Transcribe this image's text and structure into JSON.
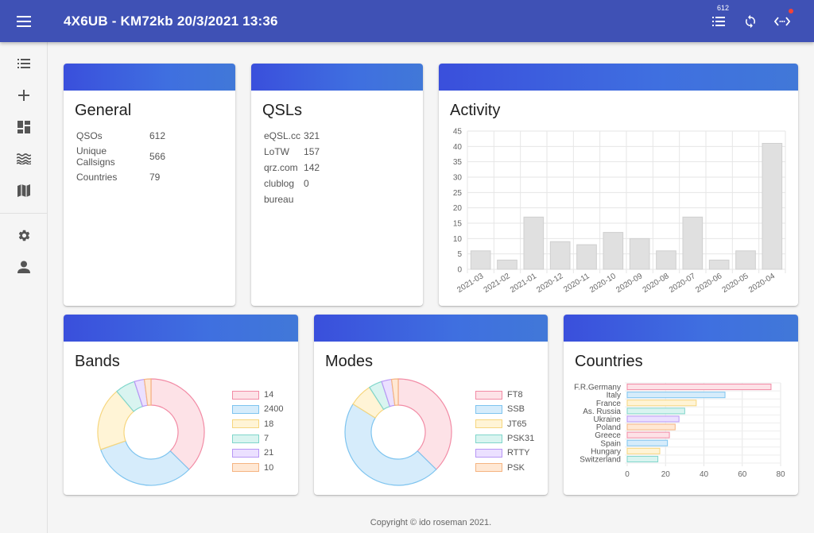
{
  "appbar": {
    "title": "4X6UB - KM72kb 20/3/2021 13:36",
    "qso_count_badge": "612",
    "color": "#3f51b5"
  },
  "sidebar": {
    "items": [
      {
        "icon": "list-icon"
      },
      {
        "icon": "plus-icon"
      },
      {
        "icon": "dashboard-icon"
      },
      {
        "icon": "waves-icon"
      },
      {
        "icon": "map-icon"
      },
      {
        "icon": "gear-icon"
      },
      {
        "icon": "person-icon"
      }
    ]
  },
  "general": {
    "title": "General",
    "rows": [
      {
        "label": "QSOs",
        "value": "612"
      },
      {
        "label": "Unique Callsigns",
        "value": "566"
      },
      {
        "label": "Countries",
        "value": "79"
      }
    ]
  },
  "qsls": {
    "title": "QSLs",
    "rows": [
      {
        "label": "eQSL.cc",
        "value": "321"
      },
      {
        "label": "LoTW",
        "value": "157"
      },
      {
        "label": "qrz.com",
        "value": "142"
      },
      {
        "label": "clublog",
        "value": "0"
      },
      {
        "label": "bureau",
        "value": ""
      }
    ]
  },
  "activity": {
    "title": "Activity",
    "chart_data": {
      "type": "bar",
      "categories": [
        "2021-03",
        "2021-02",
        "2021-01",
        "2020-12",
        "2020-11",
        "2020-10",
        "2020-09",
        "2020-08",
        "2020-07",
        "2020-06",
        "2020-05",
        "2020-04"
      ],
      "values": [
        6,
        3,
        17,
        9,
        8,
        12,
        10,
        6,
        17,
        3,
        6,
        41
      ],
      "ylim": [
        0,
        45
      ],
      "yticks": [
        "0",
        "5",
        "10",
        "15",
        "20",
        "25",
        "30",
        "35",
        "40",
        "45"
      ],
      "grid": true,
      "bar_color": "#e0e0e0"
    }
  },
  "bands": {
    "title": "Bands",
    "chart_data": {
      "type": "pie",
      "labels": [
        "14",
        "2400",
        "18",
        "7",
        "21",
        "10"
      ],
      "values": [
        37,
        32,
        19,
        6,
        3,
        2
      ],
      "fills": [
        "#fde2e7",
        "#d6ecfb",
        "#fff4d6",
        "#d9f4f0",
        "#ebe0ff",
        "#ffe8d4"
      ],
      "strokes": [
        "#f28ba5",
        "#7ec4ef",
        "#f6d67e",
        "#80d6cb",
        "#b897f5",
        "#f5b482"
      ]
    }
  },
  "modes": {
    "title": "Modes",
    "chart_data": {
      "type": "pie",
      "labels": [
        "FT8",
        "SSB",
        "JT65",
        "PSK31",
        "RTTY",
        "PSK"
      ],
      "values": [
        37,
        46,
        7,
        4,
        3,
        2
      ],
      "fills": [
        "#fde2e7",
        "#d6ecfb",
        "#fff4d6",
        "#d9f4f0",
        "#ebe0ff",
        "#ffe8d4"
      ],
      "strokes": [
        "#f28ba5",
        "#7ec4ef",
        "#f6d67e",
        "#80d6cb",
        "#b897f5",
        "#f5b482"
      ]
    }
  },
  "countries": {
    "title": "Countries",
    "chart_data": {
      "type": "bar",
      "orientation": "horizontal",
      "categories": [
        "F.R.Germany",
        "Italy",
        "France",
        "As. Russia",
        "Ukraine",
        "Poland",
        "Greece",
        "Spain",
        "Hungary",
        "Switzerland"
      ],
      "values": [
        75,
        51,
        36,
        30,
        27,
        25,
        22,
        21,
        17,
        16
      ],
      "xlim": [
        0,
        80
      ],
      "xticks": [
        "0",
        "20",
        "40",
        "60",
        "80"
      ],
      "fills": [
        "#fde2e7",
        "#d6ecfb",
        "#fff4d6",
        "#d9f4f0",
        "#ebe0ff",
        "#ffe8d4",
        "#fde2e7",
        "#d6ecfb",
        "#fff4d6",
        "#d9f4f0"
      ],
      "strokes": [
        "#f28ba5",
        "#7ec4ef",
        "#f6d67e",
        "#80d6cb",
        "#b897f5",
        "#f5b482",
        "#f28ba5",
        "#7ec4ef",
        "#f6d67e",
        "#80d6cb"
      ]
    }
  },
  "footer": {
    "text": "Copyright © ido roseman 2021."
  }
}
